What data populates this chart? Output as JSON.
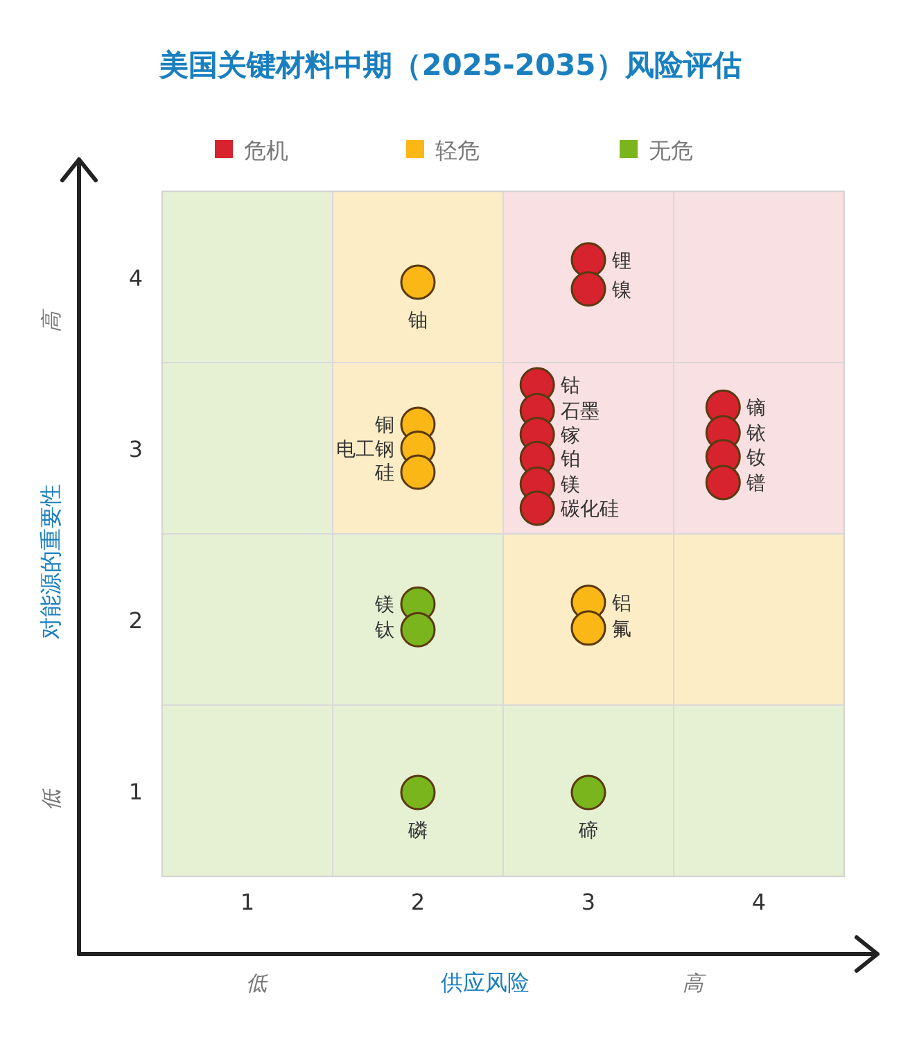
{
  "chart_data": {
    "type": "scatter",
    "title": "美国关键材料中期（2025-2035）风险评估",
    "xlabel": "供应风险",
    "ylabel": "对能源的重要性",
    "xlim": [
      0.5,
      4.5
    ],
    "ylim": [
      0.5,
      4.5
    ],
    "xticks": [
      1,
      2,
      3,
      4
    ],
    "yticks": [
      1,
      2,
      3,
      4
    ],
    "legend": "top",
    "marker": "circle",
    "series": [
      {
        "name": "危机",
        "color": "#d7232e",
        "x": [
          3.0,
          3.0,
          2.7,
          2.7,
          2.7,
          2.7,
          2.7,
          2.7,
          3.79,
          3.79,
          3.79,
          3.79
        ],
        "values": [
          4.1,
          3.93,
          3.37,
          3.22,
          3.08,
          2.94,
          2.79,
          2.65,
          3.24,
          3.09,
          2.95,
          2.8
        ]
      },
      {
        "name": "轻危",
        "color": "#fbb716",
        "x": [
          2.0,
          2.0,
          2.0,
          2.0,
          3.0,
          3.0
        ],
        "values": [
          3.97,
          3.14,
          3.0,
          2.86,
          2.1,
          1.95
        ]
      },
      {
        "name": "无危",
        "color": "#7ab51d",
        "x": [
          2.0,
          2.0,
          2.0,
          3.0
        ],
        "values": [
          2.09,
          1.94,
          0.99,
          0.99
        ]
      }
    ],
    "annotations": [
      {
        "text": "锂",
        "x": 3.0,
        "y": 4.1
      },
      {
        "text": "镍",
        "x": 3.0,
        "y": 3.93
      },
      {
        "text": "铀",
        "x": 2.0,
        "y": 3.97
      },
      {
        "text": "铜",
        "x": 2.0,
        "y": 3.14
      },
      {
        "text": "电工钢",
        "x": 2.0,
        "y": 3.0
      },
      {
        "text": "硅",
        "x": 2.0,
        "y": 2.86
      },
      {
        "text": "钴",
        "x": 2.7,
        "y": 3.37
      },
      {
        "text": "石墨",
        "x": 2.7,
        "y": 3.22
      },
      {
        "text": "镓",
        "x": 2.7,
        "y": 3.08
      },
      {
        "text": "铂",
        "x": 2.7,
        "y": 2.94
      },
      {
        "text": "镁",
        "x": 2.7,
        "y": 2.79
      },
      {
        "text": "碳化硅",
        "x": 2.7,
        "y": 2.65
      },
      {
        "text": "镝",
        "x": 3.79,
        "y": 3.24
      },
      {
        "text": "铱",
        "x": 3.79,
        "y": 3.09
      },
      {
        "text": "钕",
        "x": 3.79,
        "y": 2.95
      },
      {
        "text": "镨",
        "x": 3.79,
        "y": 2.8
      },
      {
        "text": "镁",
        "x": 2.0,
        "y": 2.09
      },
      {
        "text": "钛",
        "x": 2.0,
        "y": 1.94
      },
      {
        "text": "铝",
        "x": 3.0,
        "y": 2.1
      },
      {
        "text": "氟",
        "x": 3.0,
        "y": 1.95
      },
      {
        "text": "磷",
        "x": 2.0,
        "y": 0.99
      },
      {
        "text": "碲",
        "x": 3.0,
        "y": 0.99
      },
      "低",
      "高",
      "低",
      "高"
    ]
  }
}
